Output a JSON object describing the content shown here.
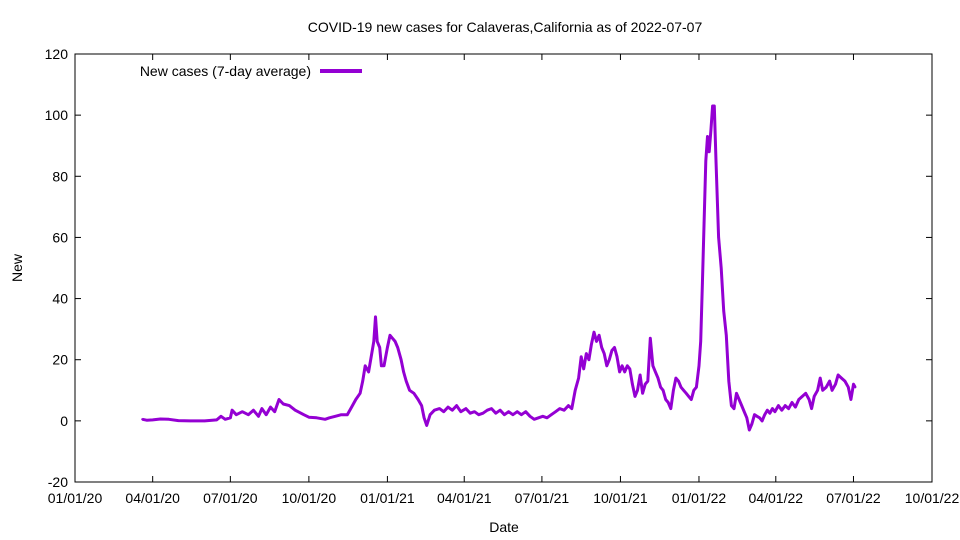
{
  "chart_data": {
    "type": "line",
    "title": "COVID-19 new cases for Calaveras,California as of 2022-07-07",
    "xlabel": "Date",
    "ylabel": "New",
    "xlim": [
      "2020-01-01",
      "2022-10-01"
    ],
    "ylim": [
      -20,
      120
    ],
    "x_ticks": [
      "01/01/20",
      "04/01/20",
      "07/01/20",
      "10/01/20",
      "01/01/21",
      "04/01/21",
      "07/01/21",
      "10/01/21",
      "01/01/22",
      "04/01/22",
      "07/01/22",
      "10/01/22"
    ],
    "y_ticks": [
      -20,
      0,
      20,
      40,
      60,
      80,
      100,
      120
    ],
    "grid": false,
    "legend_position": "top-left",
    "series": [
      {
        "name": "New cases (7-day average)",
        "color": "#9400d3",
        "points": [
          [
            "2020-03-20",
            0.5
          ],
          [
            "2020-03-25",
            0.2
          ],
          [
            "2020-04-01",
            0.3
          ],
          [
            "2020-04-10",
            0.6
          ],
          [
            "2020-04-20",
            0.5
          ],
          [
            "2020-05-01",
            0.1
          ],
          [
            "2020-05-15",
            0.0
          ],
          [
            "2020-06-01",
            0.0
          ],
          [
            "2020-06-15",
            0.3
          ],
          [
            "2020-06-20",
            1.5
          ],
          [
            "2020-06-25",
            0.5
          ],
          [
            "2020-07-01",
            1.0
          ],
          [
            "2020-07-03",
            3.5
          ],
          [
            "2020-07-08",
            2.0
          ],
          [
            "2020-07-15",
            3.0
          ],
          [
            "2020-07-22",
            2.0
          ],
          [
            "2020-07-28",
            3.5
          ],
          [
            "2020-08-03",
            1.5
          ],
          [
            "2020-08-07",
            4.0
          ],
          [
            "2020-08-12",
            2.0
          ],
          [
            "2020-08-17",
            4.5
          ],
          [
            "2020-08-22",
            3.0
          ],
          [
            "2020-08-27",
            7.0
          ],
          [
            "2020-09-01",
            5.5
          ],
          [
            "2020-09-08",
            5.0
          ],
          [
            "2020-09-15",
            3.5
          ],
          [
            "2020-09-25",
            2.0
          ],
          [
            "2020-10-01",
            1.2
          ],
          [
            "2020-10-10",
            1.0
          ],
          [
            "2020-10-20",
            0.5
          ],
          [
            "2020-10-25",
            1.0
          ],
          [
            "2020-11-01",
            1.5
          ],
          [
            "2020-11-08",
            2.0
          ],
          [
            "2020-11-15",
            2.0
          ],
          [
            "2020-11-20",
            4.5
          ],
          [
            "2020-11-25",
            7.0
          ],
          [
            "2020-11-30",
            9.0
          ],
          [
            "2020-12-03",
            13.0
          ],
          [
            "2020-12-06",
            18.0
          ],
          [
            "2020-12-10",
            16.0
          ],
          [
            "2020-12-13",
            21.0
          ],
          [
            "2020-12-16",
            26.0
          ],
          [
            "2020-12-18",
            34.0
          ],
          [
            "2020-12-20",
            26.0
          ],
          [
            "2020-12-23",
            24.0
          ],
          [
            "2020-12-25",
            18.0
          ],
          [
            "2020-12-28",
            18.0
          ],
          [
            "2021-01-01",
            24.0
          ],
          [
            "2021-01-04",
            28.0
          ],
          [
            "2021-01-07",
            27.0
          ],
          [
            "2021-01-10",
            26.0
          ],
          [
            "2021-01-13",
            24.0
          ],
          [
            "2021-01-17",
            20.0
          ],
          [
            "2021-01-20",
            16.0
          ],
          [
            "2021-01-23",
            13.0
          ],
          [
            "2021-01-27",
            10.0
          ],
          [
            "2021-02-01",
            9.0
          ],
          [
            "2021-02-06",
            7.0
          ],
          [
            "2021-02-10",
            5.0
          ],
          [
            "2021-02-13",
            1.0
          ],
          [
            "2021-02-16",
            -1.5
          ],
          [
            "2021-02-20",
            2.0
          ],
          [
            "2021-02-25",
            3.5
          ],
          [
            "2021-03-03",
            4.0
          ],
          [
            "2021-03-08",
            3.0
          ],
          [
            "2021-03-13",
            4.5
          ],
          [
            "2021-03-18",
            3.5
          ],
          [
            "2021-03-23",
            5.0
          ],
          [
            "2021-03-28",
            3.0
          ],
          [
            "2021-04-03",
            4.0
          ],
          [
            "2021-04-08",
            2.5
          ],
          [
            "2021-04-13",
            3.0
          ],
          [
            "2021-04-18",
            2.0
          ],
          [
            "2021-04-23",
            2.5
          ],
          [
            "2021-04-28",
            3.5
          ],
          [
            "2021-05-03",
            4.0
          ],
          [
            "2021-05-08",
            2.5
          ],
          [
            "2021-05-13",
            3.5
          ],
          [
            "2021-05-18",
            2.0
          ],
          [
            "2021-05-23",
            3.0
          ],
          [
            "2021-05-28",
            2.0
          ],
          [
            "2021-06-02",
            3.0
          ],
          [
            "2021-06-07",
            2.0
          ],
          [
            "2021-06-12",
            3.0
          ],
          [
            "2021-06-17",
            1.5
          ],
          [
            "2021-06-22",
            0.5
          ],
          [
            "2021-06-27",
            1.0
          ],
          [
            "2021-07-02",
            1.5
          ],
          [
            "2021-07-07",
            1.0
          ],
          [
            "2021-07-12",
            2.0
          ],
          [
            "2021-07-17",
            3.0
          ],
          [
            "2021-07-22",
            4.0
          ],
          [
            "2021-07-27",
            3.5
          ],
          [
            "2021-08-01",
            5.0
          ],
          [
            "2021-08-05",
            4.0
          ],
          [
            "2021-08-09",
            10.0
          ],
          [
            "2021-08-13",
            14.0
          ],
          [
            "2021-08-16",
            21.0
          ],
          [
            "2021-08-19",
            17.0
          ],
          [
            "2021-08-22",
            22.0
          ],
          [
            "2021-08-25",
            20.0
          ],
          [
            "2021-08-28",
            25.0
          ],
          [
            "2021-08-31",
            29.0
          ],
          [
            "2021-09-03",
            26.0
          ],
          [
            "2021-09-06",
            28.0
          ],
          [
            "2021-09-09",
            24.0
          ],
          [
            "2021-09-12",
            22.0
          ],
          [
            "2021-09-15",
            18.0
          ],
          [
            "2021-09-18",
            20.0
          ],
          [
            "2021-09-21",
            23.0
          ],
          [
            "2021-09-24",
            24.0
          ],
          [
            "2021-09-27",
            21.0
          ],
          [
            "2021-09-30",
            16.0
          ],
          [
            "2021-10-03",
            18.0
          ],
          [
            "2021-10-06",
            16.0
          ],
          [
            "2021-10-09",
            18.0
          ],
          [
            "2021-10-12",
            17.0
          ],
          [
            "2021-10-15",
            12.0
          ],
          [
            "2021-10-18",
            8.0
          ],
          [
            "2021-10-21",
            10.0
          ],
          [
            "2021-10-24",
            15.0
          ],
          [
            "2021-10-27",
            9.0
          ],
          [
            "2021-10-30",
            12.0
          ],
          [
            "2021-11-02",
            13.0
          ],
          [
            "2021-11-05",
            27.0
          ],
          [
            "2021-11-08",
            18.0
          ],
          [
            "2021-11-11",
            16.0
          ],
          [
            "2021-11-14",
            14.0
          ],
          [
            "2021-11-17",
            11.0
          ],
          [
            "2021-11-20",
            10.0
          ],
          [
            "2021-11-23",
            7.0
          ],
          [
            "2021-11-26",
            6.0
          ],
          [
            "2021-11-29",
            4.0
          ],
          [
            "2021-12-02",
            10.0
          ],
          [
            "2021-12-05",
            14.0
          ],
          [
            "2021-12-08",
            13.0
          ],
          [
            "2021-12-11",
            11.0
          ],
          [
            "2021-12-14",
            10.0
          ],
          [
            "2021-12-17",
            9.0
          ],
          [
            "2021-12-20",
            8.0
          ],
          [
            "2021-12-23",
            7.0
          ],
          [
            "2021-12-26",
            10.0
          ],
          [
            "2021-12-29",
            11.0
          ],
          [
            "2022-01-01",
            18.0
          ],
          [
            "2022-01-03",
            26.0
          ],
          [
            "2022-01-05",
            45.0
          ],
          [
            "2022-01-07",
            65.0
          ],
          [
            "2022-01-09",
            85.0
          ],
          [
            "2022-01-11",
            93.0
          ],
          [
            "2022-01-13",
            88.0
          ],
          [
            "2022-01-15",
            95.0
          ],
          [
            "2022-01-17",
            103.0
          ],
          [
            "2022-01-19",
            103.0
          ],
          [
            "2022-01-21",
            85.0
          ],
          [
            "2022-01-24",
            60.0
          ],
          [
            "2022-01-27",
            50.0
          ],
          [
            "2022-01-30",
            36.0
          ],
          [
            "2022-02-02",
            28.0
          ],
          [
            "2022-02-05",
            13.0
          ],
          [
            "2022-02-08",
            5.0
          ],
          [
            "2022-02-11",
            4.0
          ],
          [
            "2022-02-14",
            9.0
          ],
          [
            "2022-02-17",
            7.0
          ],
          [
            "2022-02-20",
            5.0
          ],
          [
            "2022-02-23",
            3.0
          ],
          [
            "2022-02-26",
            1.0
          ],
          [
            "2022-03-01",
            -3.0
          ],
          [
            "2022-03-04",
            -1.0
          ],
          [
            "2022-03-07",
            2.0
          ],
          [
            "2022-03-10",
            1.5
          ],
          [
            "2022-03-13",
            1.0
          ],
          [
            "2022-03-16",
            0.0
          ],
          [
            "2022-03-19",
            2.0
          ],
          [
            "2022-03-22",
            3.5
          ],
          [
            "2022-03-25",
            2.5
          ],
          [
            "2022-03-28",
            4.0
          ],
          [
            "2022-03-31",
            3.0
          ],
          [
            "2022-04-04",
            5.0
          ],
          [
            "2022-04-08",
            3.5
          ],
          [
            "2022-04-12",
            5.0
          ],
          [
            "2022-04-16",
            4.0
          ],
          [
            "2022-04-20",
            6.0
          ],
          [
            "2022-04-24",
            4.5
          ],
          [
            "2022-04-28",
            7.0
          ],
          [
            "2022-05-02",
            8.0
          ],
          [
            "2022-05-06",
            9.0
          ],
          [
            "2022-05-10",
            7.0
          ],
          [
            "2022-05-13",
            4.0
          ],
          [
            "2022-05-16",
            8.0
          ],
          [
            "2022-05-20",
            10.0
          ],
          [
            "2022-05-23",
            14.0
          ],
          [
            "2022-05-26",
            10.0
          ],
          [
            "2022-05-30",
            11.0
          ],
          [
            "2022-06-03",
            13.0
          ],
          [
            "2022-06-06",
            10.0
          ],
          [
            "2022-06-10",
            12.0
          ],
          [
            "2022-06-13",
            15.0
          ],
          [
            "2022-06-17",
            14.0
          ],
          [
            "2022-06-21",
            13.0
          ],
          [
            "2022-06-25",
            11.0
          ],
          [
            "2022-06-28",
            7.0
          ],
          [
            "2022-07-01",
            12.0
          ],
          [
            "2022-07-03",
            11.0
          ]
        ]
      }
    ]
  }
}
